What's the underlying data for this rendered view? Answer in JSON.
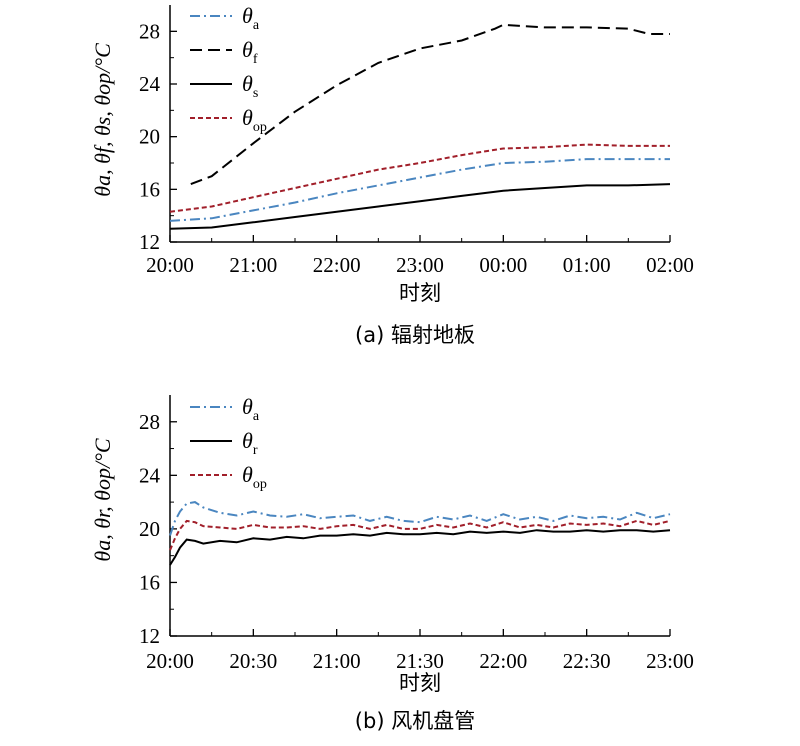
{
  "colors": {
    "theta_a": "#4a86c0",
    "theta_f": "#000000",
    "theta_s": "#000000",
    "theta_r": "#000000",
    "theta_op": "#a11f2a"
  },
  "chart_data": [
    {
      "type": "line",
      "caption": "(a) 辐射地板",
      "xlabel": "时刻",
      "ylabel": "θa, θf, θs, θop/°C",
      "ylim": [
        12,
        30
      ],
      "yticks": [
        "12",
        "16",
        "20",
        "24",
        "28"
      ],
      "xlim": [
        20,
        26
      ],
      "xticks": [
        "20:00",
        "21:00",
        "22:00",
        "23:00",
        "00:00",
        "01:00",
        "02:00"
      ],
      "legend_position": "top-left",
      "series": [
        {
          "name": "θa",
          "sym": "θ",
          "sub": "a",
          "style": "dashdot",
          "color": "#4a86c0",
          "x": [
            20.0,
            20.5,
            21.0,
            21.5,
            22.0,
            22.5,
            23.0,
            23.5,
            24.0,
            24.5,
            25.0,
            25.5,
            26.0
          ],
          "y": [
            13.6,
            13.8,
            14.4,
            15.0,
            15.7,
            16.3,
            16.9,
            17.5,
            18.0,
            18.1,
            18.3,
            18.3,
            18.3
          ]
        },
        {
          "name": "θf",
          "sym": "θ",
          "sub": "f",
          "style": "dash",
          "color": "#000000",
          "x": [
            20.25,
            20.5,
            21.0,
            21.5,
            22.0,
            22.5,
            23.0,
            23.5,
            23.9,
            24.0,
            24.5,
            25.0,
            25.5,
            25.75,
            26.0
          ],
          "y": [
            16.4,
            17.0,
            19.5,
            21.9,
            23.9,
            25.6,
            26.7,
            27.3,
            28.2,
            28.5,
            28.3,
            28.3,
            28.2,
            27.8,
            27.8
          ]
        },
        {
          "name": "θs",
          "sym": "θ",
          "sub": "s",
          "style": "solid",
          "color": "#000000",
          "x": [
            20.0,
            20.5,
            21.0,
            21.5,
            22.0,
            22.5,
            23.0,
            23.5,
            24.0,
            24.5,
            25.0,
            25.5,
            26.0
          ],
          "y": [
            13.0,
            13.1,
            13.5,
            13.9,
            14.3,
            14.7,
            15.1,
            15.5,
            15.9,
            16.1,
            16.3,
            16.3,
            16.4
          ]
        },
        {
          "name": "θop",
          "sym": "θ",
          "sub": "op",
          "style": "dotdash",
          "color": "#a11f2a",
          "x": [
            20.0,
            20.5,
            21.0,
            21.5,
            22.0,
            22.5,
            23.0,
            23.5,
            24.0,
            24.5,
            25.0,
            25.5,
            26.0
          ],
          "y": [
            14.3,
            14.7,
            15.4,
            16.1,
            16.8,
            17.5,
            18.0,
            18.6,
            19.1,
            19.2,
            19.4,
            19.3,
            19.3
          ]
        }
      ]
    },
    {
      "type": "line",
      "caption": "(b) 风机盘管",
      "xlabel": "时刻",
      "ylabel": "θa, θr, θop/°C",
      "ylim": [
        12,
        30
      ],
      "yticks": [
        "12",
        "16",
        "20",
        "24",
        "28"
      ],
      "xlim": [
        20,
        23
      ],
      "xticks": [
        "20:00",
        "20:30",
        "21:00",
        "21:30",
        "22:00",
        "22:30",
        "23:00"
      ],
      "legend_position": "top-left",
      "series": [
        {
          "name": "θa",
          "sym": "θ",
          "sub": "a",
          "style": "dashdot",
          "color": "#4a86c0",
          "x": [
            20.0,
            20.03,
            20.06,
            20.1,
            20.15,
            20.2,
            20.3,
            20.4,
            20.5,
            20.6,
            20.7,
            20.8,
            20.9,
            21.0,
            21.1,
            21.2,
            21.3,
            21.4,
            21.5,
            21.6,
            21.7,
            21.8,
            21.9,
            22.0,
            22.1,
            22.2,
            22.3,
            22.4,
            22.5,
            22.6,
            22.7,
            22.8,
            22.9,
            23.0
          ],
          "y": [
            19.5,
            20.6,
            21.3,
            21.9,
            22.0,
            21.6,
            21.2,
            21.0,
            21.3,
            21.0,
            20.9,
            21.1,
            20.8,
            20.9,
            21.0,
            20.6,
            20.9,
            20.6,
            20.5,
            20.9,
            20.7,
            21.0,
            20.6,
            21.1,
            20.7,
            20.9,
            20.6,
            21.0,
            20.8,
            20.9,
            20.7,
            21.2,
            20.8,
            21.1
          ]
        },
        {
          "name": "θr",
          "sym": "θ",
          "sub": "r",
          "style": "solid",
          "color": "#000000",
          "x": [
            20.0,
            20.03,
            20.06,
            20.1,
            20.15,
            20.2,
            20.3,
            20.4,
            20.5,
            20.6,
            20.7,
            20.8,
            20.9,
            21.0,
            21.1,
            21.2,
            21.3,
            21.4,
            21.5,
            21.6,
            21.7,
            21.8,
            21.9,
            22.0,
            22.1,
            22.2,
            22.3,
            22.4,
            22.5,
            22.6,
            22.7,
            22.8,
            22.9,
            23.0
          ],
          "y": [
            17.3,
            17.9,
            18.6,
            19.2,
            19.1,
            18.9,
            19.1,
            19.0,
            19.3,
            19.2,
            19.4,
            19.3,
            19.5,
            19.5,
            19.6,
            19.5,
            19.7,
            19.6,
            19.6,
            19.7,
            19.6,
            19.8,
            19.7,
            19.8,
            19.7,
            19.9,
            19.8,
            19.8,
            19.9,
            19.8,
            19.9,
            19.9,
            19.8,
            19.9
          ]
        },
        {
          "name": "θop",
          "sym": "θ",
          "sub": "op",
          "style": "dotdash",
          "color": "#a11f2a",
          "x": [
            20.0,
            20.03,
            20.06,
            20.1,
            20.15,
            20.2,
            20.3,
            20.4,
            20.5,
            20.6,
            20.7,
            20.8,
            20.9,
            21.0,
            21.1,
            21.2,
            21.3,
            21.4,
            21.5,
            21.6,
            21.7,
            21.8,
            21.9,
            22.0,
            22.1,
            22.2,
            22.3,
            22.4,
            22.5,
            22.6,
            22.7,
            22.8,
            22.9,
            23.0
          ],
          "y": [
            18.4,
            19.3,
            20.0,
            20.6,
            20.5,
            20.2,
            20.1,
            20.0,
            20.3,
            20.1,
            20.1,
            20.2,
            20.0,
            20.2,
            20.3,
            20.0,
            20.3,
            20.0,
            20.0,
            20.3,
            20.1,
            20.4,
            20.1,
            20.5,
            20.1,
            20.3,
            20.1,
            20.4,
            20.3,
            20.4,
            20.2,
            20.6,
            20.3,
            20.6
          ]
        }
      ]
    }
  ]
}
